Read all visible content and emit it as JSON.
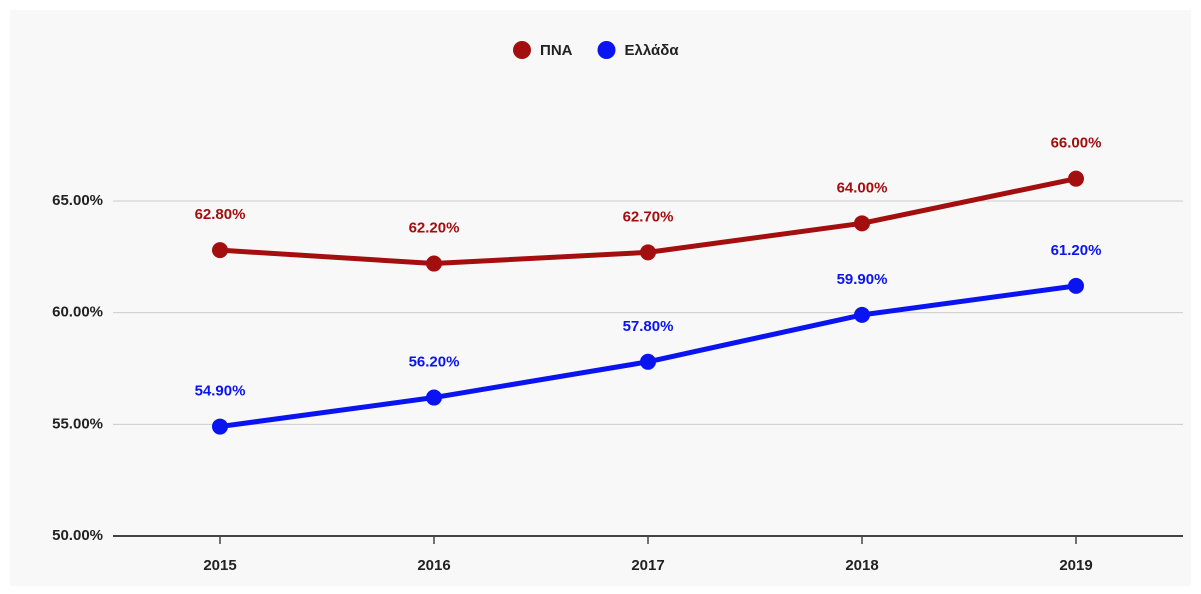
{
  "chart_data": {
    "type": "line",
    "categories": [
      "2015",
      "2016",
      "2017",
      "2018",
      "2019"
    ],
    "series": [
      {
        "name": "ΠΝΑ",
        "color": "#a30f0f",
        "values": [
          62.8,
          62.2,
          62.7,
          64.0,
          66.0
        ],
        "value_labels": [
          "62.80%",
          "62.20%",
          "62.70%",
          "64.00%",
          "66.00%"
        ]
      },
      {
        "name": "Ελλάδα",
        "color": "#0a14f0",
        "values": [
          54.9,
          56.2,
          57.8,
          59.9,
          61.2
        ],
        "value_labels": [
          "54.90%",
          "56.20%",
          "57.80%",
          "59.90%",
          "61.20%"
        ]
      }
    ],
    "ylim": [
      50,
      68
    ],
    "yticks": [
      {
        "value": 50,
        "label": "50.00%"
      },
      {
        "value": 55,
        "label": "55.00%"
      },
      {
        "value": 60,
        "label": "60.00%"
      },
      {
        "value": 65,
        "label": "65.00%"
      }
    ],
    "grid": true,
    "legend": "top"
  }
}
